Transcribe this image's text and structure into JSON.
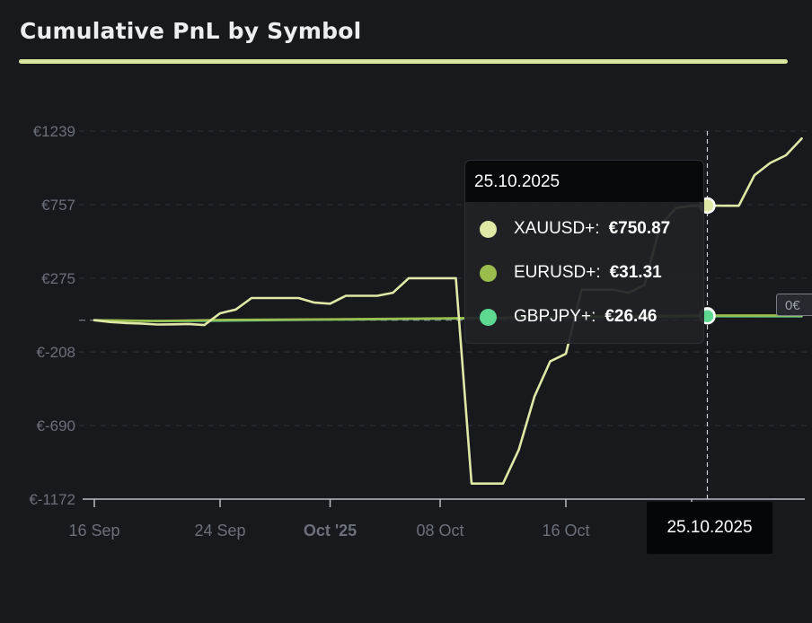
{
  "title": "Cumulative PnL by Symbol",
  "colors": {
    "background": "#17191d",
    "accent": "#d9e6a0",
    "xauusd": "#dfe8a5",
    "eurusd": "#9bbd4d",
    "gbpjpy": "#5ed992",
    "grid": "#30343a",
    "tick_text": "#6b7079"
  },
  "tooltip": {
    "date": "25.10.2025",
    "rows": [
      {
        "label": "XAUUSD+:",
        "value": "€750.87",
        "color": "#dfe8a5"
      },
      {
        "label": "EURUSD+:",
        "value": "€31.31",
        "color": "#9bbd4d"
      },
      {
        "label": "GBPJPY+:",
        "value": "€26.46",
        "color": "#5ed992"
      }
    ]
  },
  "crosshair_label": "25.10.2025",
  "zero_badge": "0€",
  "chart_data": {
    "type": "line",
    "title": "Cumulative PnL by Symbol",
    "y_ticks": [
      "€1239",
      "€757",
      "€275",
      "€-208",
      "€-690",
      "€-1172"
    ],
    "y_tick_values": [
      1239,
      757,
      275,
      -208,
      -690,
      -1172
    ],
    "ylim": [
      -1172,
      1239
    ],
    "x_ticks": [
      {
        "label": "16 Sep",
        "date": "2025-09-16",
        "bold": false
      },
      {
        "label": "24 Sep",
        "date": "2025-09-24",
        "bold": false
      },
      {
        "label": "Oct '25",
        "date": "2025-10-01",
        "bold": true
      },
      {
        "label": "08 Oct",
        "date": "2025-10-08",
        "bold": false
      },
      {
        "label": "16 Oct",
        "date": "2025-10-16",
        "bold": false
      }
    ],
    "xlim": [
      "2025-09-16",
      "2025-10-31"
    ],
    "grid": true,
    "crosshair_date": "2025-10-25",
    "series": [
      {
        "name": "XAUUSD+",
        "color": "#dfe8a5",
        "points": [
          [
            "2025-09-16",
            0
          ],
          [
            "2025-09-17",
            -12
          ],
          [
            "2025-09-18",
            -18
          ],
          [
            "2025-09-19",
            -22
          ],
          [
            "2025-09-20",
            -28
          ],
          [
            "2025-09-21",
            -27
          ],
          [
            "2025-09-22",
            -25
          ],
          [
            "2025-09-23",
            -32
          ],
          [
            "2025-09-24",
            45
          ],
          [
            "2025-09-25",
            70
          ],
          [
            "2025-09-26",
            145
          ],
          [
            "2025-09-27",
            145
          ],
          [
            "2025-09-28",
            145
          ],
          [
            "2025-09-29",
            145
          ],
          [
            "2025-09-30",
            115
          ],
          [
            "2025-10-01",
            108
          ],
          [
            "2025-10-02",
            160
          ],
          [
            "2025-10-03",
            160
          ],
          [
            "2025-10-04",
            160
          ],
          [
            "2025-10-05",
            180
          ],
          [
            "2025-10-06",
            275
          ],
          [
            "2025-10-07",
            275
          ],
          [
            "2025-10-08",
            275
          ],
          [
            "2025-10-09",
            275
          ],
          [
            "2025-10-10",
            -1070
          ],
          [
            "2025-10-11",
            -1070
          ],
          [
            "2025-10-12",
            -1070
          ],
          [
            "2025-10-13",
            -850
          ],
          [
            "2025-10-14",
            -500
          ],
          [
            "2025-10-15",
            -270
          ],
          [
            "2025-10-16",
            -220
          ],
          [
            "2025-10-17",
            200
          ],
          [
            "2025-10-18",
            200
          ],
          [
            "2025-10-19",
            200
          ],
          [
            "2025-10-20",
            180
          ],
          [
            "2025-10-21",
            230
          ],
          [
            "2025-10-22",
            620
          ],
          [
            "2025-10-23",
            735
          ],
          [
            "2025-10-24",
            750
          ],
          [
            "2025-10-25",
            750.87
          ],
          [
            "2025-10-26",
            750
          ],
          [
            "2025-10-27",
            750
          ],
          [
            "2025-10-28",
            950
          ],
          [
            "2025-10-29",
            1030
          ],
          [
            "2025-10-30",
            1080
          ],
          [
            "2025-10-31",
            1190
          ]
        ]
      },
      {
        "name": "EURUSD+",
        "color": "#9bbd4d",
        "points": [
          [
            "2025-09-16",
            0
          ],
          [
            "2025-09-20",
            -5
          ],
          [
            "2025-09-24",
            2
          ],
          [
            "2025-10-01",
            6
          ],
          [
            "2025-10-08",
            12
          ],
          [
            "2025-10-16",
            22
          ],
          [
            "2025-10-25",
            31.31
          ],
          [
            "2025-10-31",
            31
          ]
        ]
      },
      {
        "name": "GBPJPY+",
        "color": "#5ed992",
        "points": [
          [
            "2025-09-16",
            0
          ],
          [
            "2025-09-20",
            -6
          ],
          [
            "2025-09-24",
            -3
          ],
          [
            "2025-10-01",
            4
          ],
          [
            "2025-10-08",
            10
          ],
          [
            "2025-10-16",
            18
          ],
          [
            "2025-10-25",
            26.46
          ],
          [
            "2025-10-31",
            26
          ]
        ]
      }
    ]
  }
}
